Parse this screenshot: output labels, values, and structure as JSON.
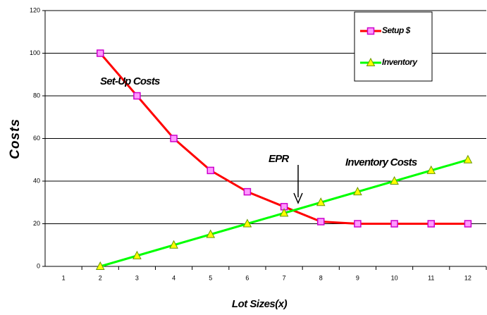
{
  "chart_data": {
    "type": "line",
    "x_label": "Lot Sizes(x)",
    "y_label": "Costs",
    "categories": [
      "1",
      "2",
      "3",
      "4",
      "5",
      "6",
      "7",
      "8",
      "9",
      "10",
      "11",
      "12"
    ],
    "series": [
      {
        "name": "Setup $",
        "color": "#ff0000",
        "marker": "square",
        "marker_color": "#cc00cc",
        "marker_fill": "#ff99ff",
        "values": [
          null,
          100,
          80,
          60,
          45,
          35,
          28,
          21,
          20,
          20,
          20,
          20
        ]
      },
      {
        "name": "Inventory",
        "color": "#00ff00",
        "marker": "triangle",
        "marker_color": "#669900",
        "marker_fill": "#ffff00",
        "values": [
          null,
          0,
          5,
          10,
          15,
          20,
          25,
          30,
          35,
          40,
          45,
          50
        ]
      }
    ],
    "ylim": [
      0,
      120
    ],
    "yticks": [
      0,
      20,
      40,
      60,
      80,
      100,
      120
    ],
    "grid": true,
    "legend": "upper right",
    "annotations": [
      {
        "text": "Set-Up Costs"
      },
      {
        "text": "EPR"
      },
      {
        "text": "Inventory Costs"
      }
    ]
  }
}
